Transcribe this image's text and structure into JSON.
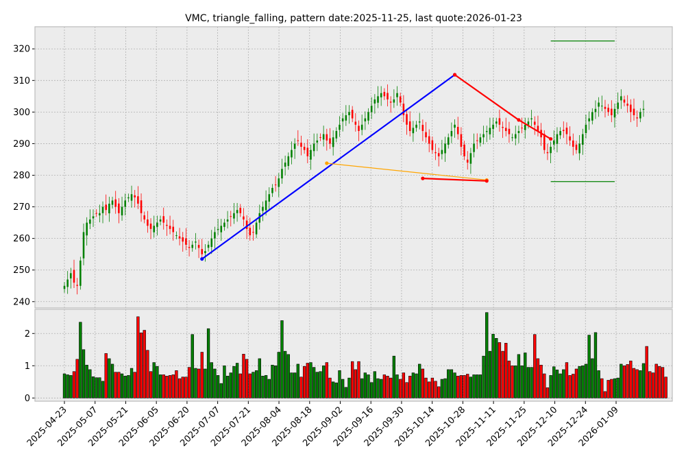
{
  "chart_data": {
    "type": "candlestick",
    "title": "VMC, triangle_falling, pattern date:2025-11-25, last quote:2026-01-23",
    "x_tick_labels": [
      "2025-04-23",
      "2025-05-07",
      "2025-05-21",
      "2025-06-05",
      "2025-06-20",
      "2025-07-07",
      "2025-07-21",
      "2025-08-04",
      "2025-08-18",
      "2025-09-02",
      "2025-09-16",
      "2025-09-30",
      "2025-10-14",
      "2025-10-28",
      "2025-11-11",
      "2025-11-25",
      "2025-12-10",
      "2025-12-24",
      "2026-01-09"
    ],
    "price_panel": {
      "ylim": [
        238,
        327
      ],
      "y_ticks": [
        240,
        250,
        260,
        270,
        280,
        290,
        300,
        310,
        320
      ],
      "grid": true,
      "closes": [
        245,
        247,
        249,
        246,
        245,
        253,
        262,
        265,
        266,
        267,
        268,
        268,
        270,
        269,
        271,
        272,
        270,
        268,
        270,
        272,
        273,
        274,
        273,
        271,
        268,
        266,
        264,
        263,
        264,
        265,
        266,
        265,
        264,
        263,
        262,
        261,
        260,
        259,
        258,
        257,
        258,
        259,
        257,
        255,
        256,
        258,
        260,
        262,
        263,
        264,
        265,
        266,
        267,
        268,
        269,
        268,
        266,
        263,
        261,
        262,
        265,
        268,
        270,
        272,
        274,
        276,
        277,
        279,
        282,
        284,
        286,
        288,
        290,
        291,
        289,
        288,
        286,
        288,
        290,
        291,
        292,
        293,
        291,
        290,
        292,
        294,
        296,
        298,
        299,
        300,
        298,
        296,
        294,
        296,
        298,
        300,
        302,
        304,
        305,
        306,
        305,
        304,
        303,
        304,
        306,
        303,
        299,
        296,
        294,
        295,
        296,
        297,
        294,
        292,
        290,
        288,
        287,
        286,
        288,
        290,
        292,
        294,
        296,
        293,
        289,
        286,
        284,
        287,
        290,
        291,
        292,
        293,
        294,
        295,
        296,
        297,
        296,
        295,
        294,
        293,
        292,
        293,
        294,
        295,
        296,
        297,
        298,
        296,
        294,
        292,
        288,
        287,
        289,
        291,
        293,
        294,
        294,
        293,
        291,
        289,
        288,
        290,
        293,
        296,
        298,
        300,
        301,
        303,
        302,
        301,
        300,
        299,
        301,
        303,
        305,
        303,
        302,
        300,
        299,
        298,
        300,
        301
      ]
    },
    "volume_panel": {
      "ylim": [
        -0.1,
        2.75
      ],
      "y_ticks": [
        0,
        1,
        2
      ],
      "values": [
        0.75,
        0.72,
        0.7,
        0.82,
        1.2,
        2.35,
        1.5,
        1.02,
        0.88,
        0.66,
        0.63,
        0.63,
        0.52,
        1.38,
        1.22,
        1.05,
        0.8,
        0.8,
        0.75,
        0.68,
        0.7,
        0.92,
        0.8,
        2.52,
        2.02,
        2.1,
        1.48,
        0.82,
        1.1,
        0.98,
        0.72,
        0.72,
        0.68,
        0.7,
        0.72,
        0.85,
        0.6,
        0.65,
        0.65,
        0.95,
        1.97,
        0.92,
        0.9,
        1.42,
        0.9,
        2.15,
        1.1,
        0.9,
        0.7,
        0.45,
        1.0,
        0.68,
        0.78,
        0.98,
        1.08,
        0.75,
        1.36,
        1.2,
        0.75,
        0.8,
        0.85,
        1.22,
        0.68,
        0.7,
        0.58,
        1.02,
        1.0,
        1.42,
        2.4,
        1.45,
        1.35,
        0.78,
        0.78,
        1.05,
        0.65,
        0.98,
        1.08,
        1.1,
        0.95,
        0.8,
        0.82,
        1.0,
        1.1,
        0.62,
        0.5,
        0.47,
        0.85,
        0.58,
        0.33,
        0.62,
        1.13,
        0.88,
        1.13,
        0.6,
        0.78,
        0.72,
        0.48,
        0.82,
        0.6,
        0.58,
        0.72,
        0.68,
        0.62,
        1.3,
        0.72,
        0.58,
        0.78,
        0.48,
        0.68,
        0.78,
        0.75,
        1.05,
        0.9,
        0.62,
        0.5,
        0.62,
        0.52,
        0.35,
        0.58,
        0.6,
        0.88,
        0.88,
        0.78,
        0.68,
        0.7,
        0.7,
        0.74,
        0.65,
        0.72,
        0.72,
        0.72,
        1.3,
        2.65,
        1.45,
        1.98,
        1.85,
        1.72,
        1.45,
        1.7,
        1.15,
        1.0,
        1.0,
        1.35,
        1.0,
        1.4,
        0.95,
        0.95,
        1.97,
        1.22,
        1.02,
        0.75,
        0.32,
        0.7,
        0.97,
        0.87,
        0.75,
        0.88,
        1.1,
        0.7,
        0.74,
        0.9,
        0.98,
        1.0,
        1.05,
        1.95,
        1.22,
        2.03,
        0.85,
        0.6,
        0.2,
        0.55,
        0.58,
        0.6,
        0.62,
        1.05,
        1.0,
        1.04,
        1.15,
        0.92,
        0.88,
        0.85,
        1.07,
        1.6,
        0.82,
        0.78,
        1.05,
        0.98,
        0.95,
        0.65
      ]
    },
    "overlays": [
      {
        "name": "blue-leg",
        "color": "#0000ff",
        "points": [
          [
            43,
            253.5
          ],
          [
            122,
            311.8
          ]
        ]
      },
      {
        "name": "red-leg",
        "color": "#ff0000",
        "points": [
          [
            122,
            311.8
          ],
          [
            142,
            297.5
          ],
          [
            152,
            291.5
          ]
        ]
      },
      {
        "name": "orange-leg",
        "color": "#ffa500",
        "points": [
          [
            82,
            283.8
          ],
          [
            132,
            278.5
          ]
        ]
      },
      {
        "name": "red-lower",
        "color": "#ff0000",
        "points": [
          [
            112,
            279
          ],
          [
            132,
            278.2
          ]
        ]
      },
      {
        "name": "green-upper",
        "color": "#008000",
        "points": [
          [
            152,
            322.5
          ],
          [
            172,
            322.5
          ]
        ]
      },
      {
        "name": "green-lower",
        "color": "#008000",
        "points": [
          [
            152,
            278
          ],
          [
            172,
            278
          ]
        ]
      }
    ],
    "colors": {
      "up": "#008000",
      "down": "#ff0000",
      "background": "#ececec"
    }
  }
}
